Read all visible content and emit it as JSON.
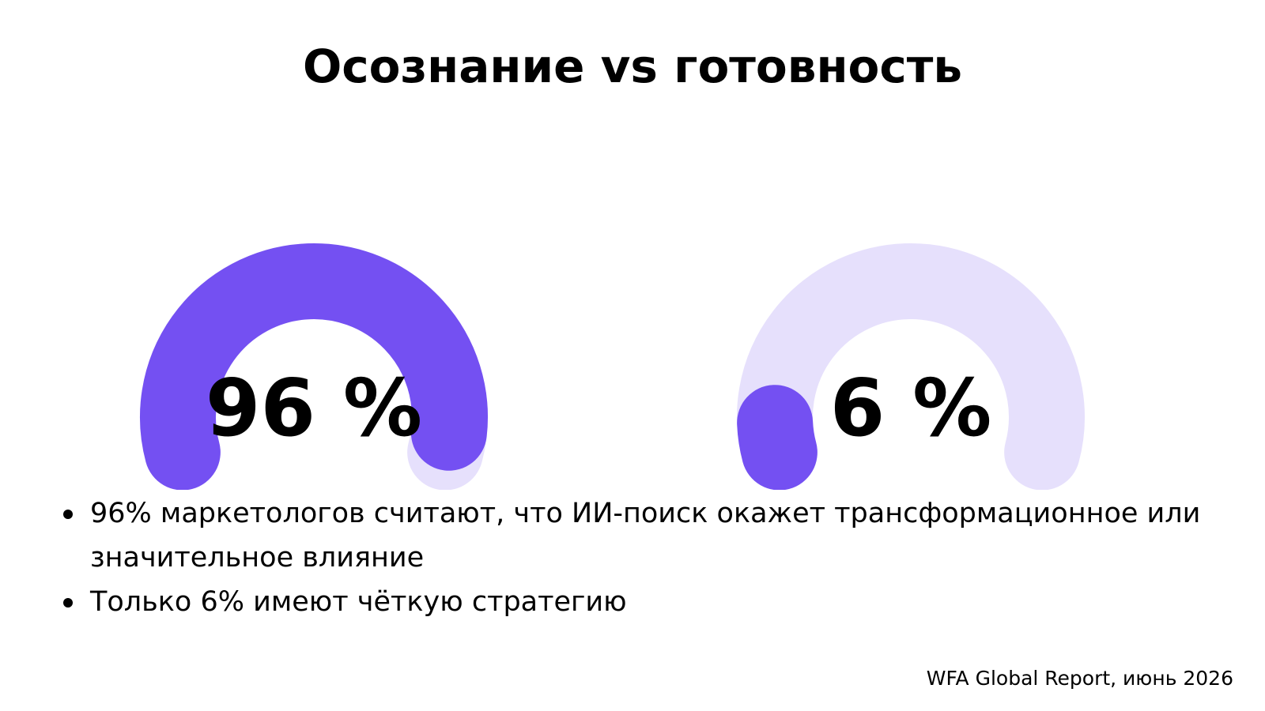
{
  "title": "Осознание vs готовность",
  "chart_data": {
    "type": "gauge",
    "max": 100,
    "gauges": [
      {
        "value": 96,
        "label": "96 %"
      },
      {
        "value": 6,
        "label": "6 %"
      }
    ],
    "colors": {
      "fill": "#7450F2",
      "track": "#E6E0FC"
    }
  },
  "bullets": [
    "96% маркетологов считают, что ИИ-поиск окажет трансформационное или значительное влияние",
    "Только 6% имеют чёткую стратегию"
  ],
  "source": "WFA Global Report, июнь 2026"
}
